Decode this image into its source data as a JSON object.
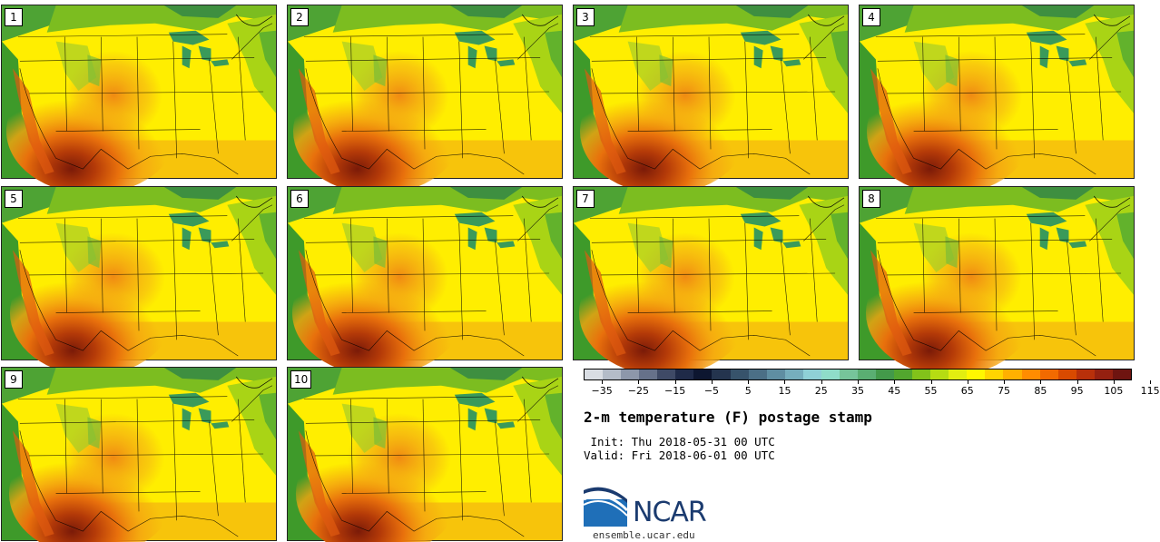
{
  "panels": [
    {
      "label": "1"
    },
    {
      "label": "2"
    },
    {
      "label": "3"
    },
    {
      "label": "4"
    },
    {
      "label": "5"
    },
    {
      "label": "6"
    },
    {
      "label": "7"
    },
    {
      "label": "8"
    },
    {
      "label": "9"
    },
    {
      "label": "10"
    }
  ],
  "colorbar": {
    "colors": [
      "#d9dde3",
      "#b4bcc8",
      "#8d97aa",
      "#66718a",
      "#3f4a66",
      "#1f2a48",
      "#0d1630",
      "#24344e",
      "#37536b",
      "#4b6f86",
      "#5f8ea2",
      "#76aebd",
      "#8fd0d6",
      "#8fdcc9",
      "#76c49a",
      "#5aae72",
      "#43994a",
      "#52a62e",
      "#82c21a",
      "#b6dc12",
      "#e2ee10",
      "#fff700",
      "#ffd400",
      "#ffb000",
      "#ff8c00",
      "#f26a00",
      "#d94a00",
      "#b8300a",
      "#952010",
      "#6e1410"
    ],
    "tick_labels": [
      "−35",
      "−25",
      "−15",
      "−5",
      "5",
      "15",
      "25",
      "35",
      "45",
      "55",
      "65",
      "75",
      "85",
      "95",
      "105",
      "115"
    ]
  },
  "title": "2-m temperature (F) postage stamp",
  "init": " Init: Thu 2018-05-31 00 UTC",
  "valid": "Valid: Fri 2018-06-01 00 UTC",
  "logo": {
    "word": "NCAR",
    "site": "ensemble.ucar.edu"
  },
  "icons": {
    "logo": "ncar-logo-icon"
  }
}
